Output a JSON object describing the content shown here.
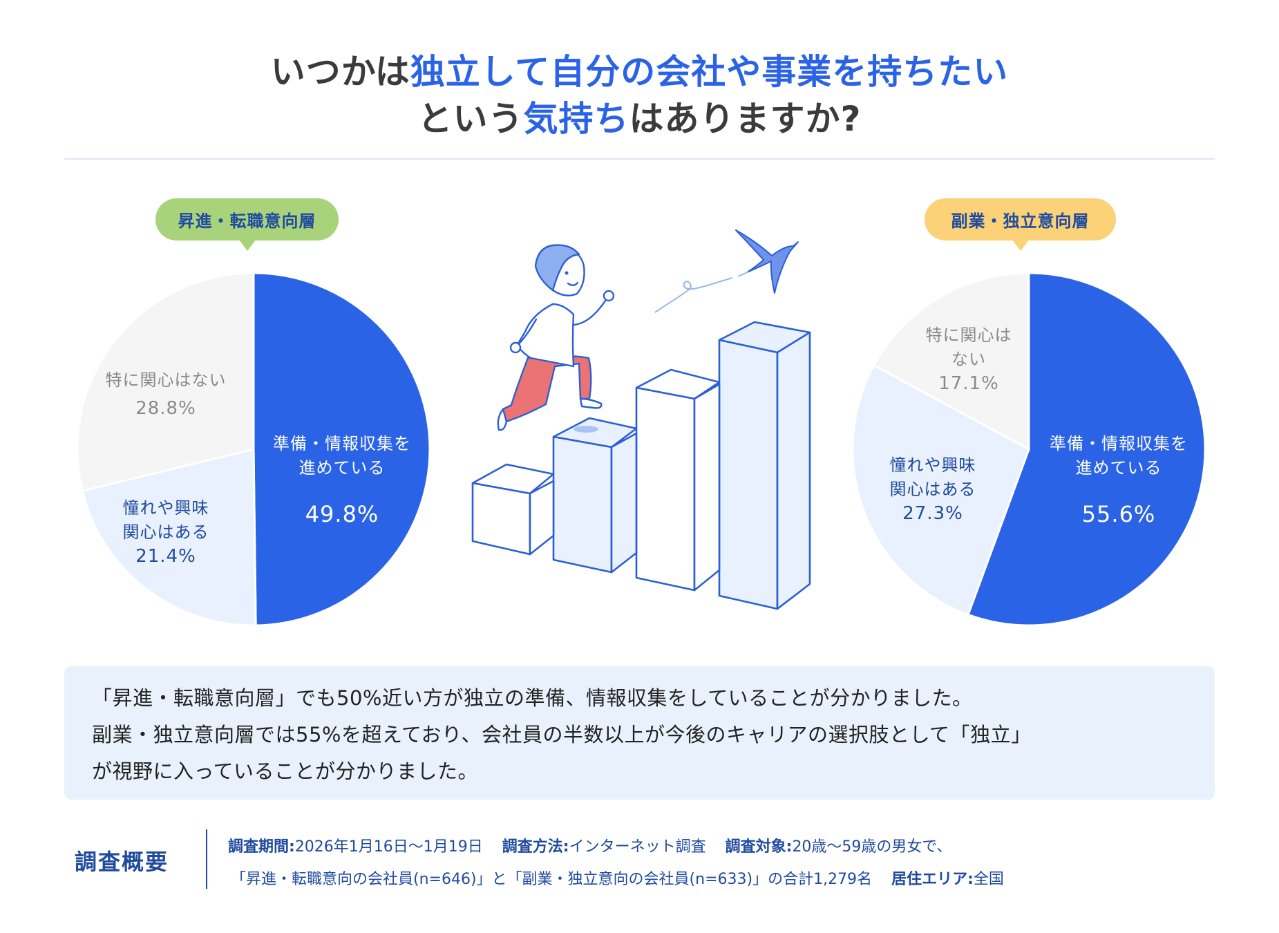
{
  "title": {
    "line1": [
      {
        "text": "いつかは",
        "highlight": false
      },
      {
        "text": "独立して自分の会社や事業を持ちたい",
        "highlight": true
      }
    ],
    "line2": [
      {
        "text": "という",
        "highlight": false
      },
      {
        "text": "気持ち",
        "highlight": true
      },
      {
        "text": "はありますか?",
        "highlight": false
      }
    ]
  },
  "colors": {
    "title_dark": "#3b3b3b",
    "title_accent": "#2b63e6",
    "slice_prepare": "#2b63e6",
    "slice_interest": "#e8f1fd",
    "slice_none": "#f6f5f5",
    "badge_left": "#a9d37b",
    "badge_right": "#fbd277",
    "badge_text": "#1f4a9e",
    "comment_bg": "#e9f1fd"
  },
  "charts": {
    "left": {
      "badge": "昇進・転職意向層",
      "slices": {
        "prepare": {
          "label_line1": "準備・情報収集を",
          "label_line2": "進めている",
          "value": "49.8%"
        },
        "interest": {
          "label_line1": "憧れや興味",
          "label_line2": "関心はある",
          "value": "21.4%"
        },
        "none": {
          "label_line1": "特に関心はない",
          "label_line2": "",
          "value": "28.8%"
        }
      }
    },
    "right": {
      "badge": "副業・独立意向層",
      "slices": {
        "prepare": {
          "label_line1": "準備・情報収集を",
          "label_line2": "進めている",
          "value": "55.6%"
        },
        "interest": {
          "label_line1": "憧れや興味",
          "label_line2": "関心はある",
          "value": "27.3%"
        },
        "none": {
          "label_line1": "特に関心は",
          "label_line2": "ない",
          "value": "17.1%"
        }
      }
    }
  },
  "chart_data": [
    {
      "type": "pie",
      "title": "昇進・転職意向層",
      "categories": [
        "準備・情報収集を進めている",
        "憧れや興味関心はある",
        "特に関心はない"
      ],
      "values": [
        49.8,
        21.4,
        28.8
      ],
      "unit": "%",
      "colors": [
        "#2b63e6",
        "#e8f1fd",
        "#f6f5f5"
      ],
      "start_angle": "12 o'clock, clockwise"
    },
    {
      "type": "pie",
      "title": "副業・独立意向層",
      "categories": [
        "準備・情報収集を進めている",
        "憧れや興味関心はある",
        "特に関心はない"
      ],
      "values": [
        55.6,
        27.3,
        17.1
      ],
      "unit": "%",
      "colors": [
        "#2b63e6",
        "#e8f1fd",
        "#f6f5f5"
      ],
      "start_angle": "12 o'clock, clockwise"
    }
  ],
  "comment": {
    "line1": "「昇進・転職意向層」でも50%近い方が独立の準備、情報収集をしていることが分かりました。",
    "line2": "副業・独立意向層では55%を超えており、会社員の半数以上が今後のキャリアの選択肢として「独立」",
    "line3": "が視野に入っていることが分かりました。"
  },
  "survey": {
    "heading": "調査概要",
    "period_label": "調査期間:",
    "period_value": "2026年1月16日〜1月19日",
    "method_label": "調査方法:",
    "method_value": "インターネット調査",
    "target_label": "調査対象:",
    "target_value": "20歳〜59歳の男女で、",
    "target_detail": "「昇進・転職意向の会社員(n=646)」と「副業・独立意向の会社員(n=633)」の合計1,279名",
    "area_label": "居住エリア:",
    "area_value": "全国"
  }
}
